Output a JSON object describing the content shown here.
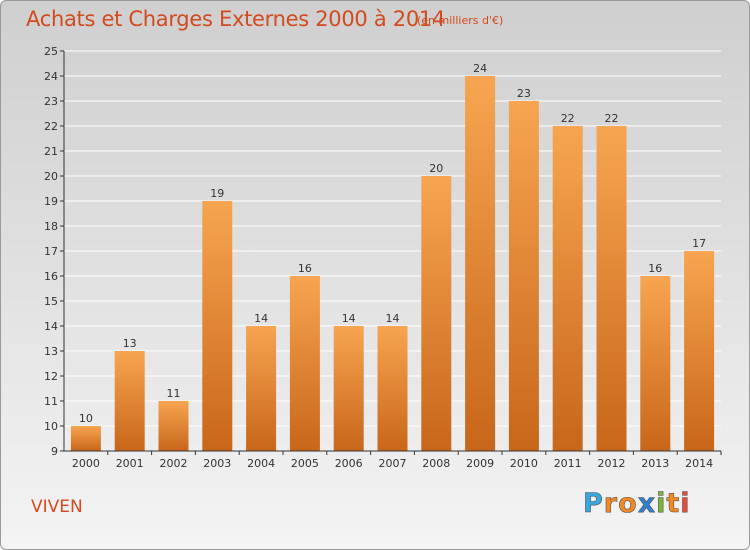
{
  "header": {
    "title": "Achats et Charges Externes 2000 à 2014",
    "subtitle": "(en milliers d'€)"
  },
  "footer": {
    "commune": "VIVEN",
    "logo_text": "Proxiti",
    "logo_letters": [
      {
        "char": "P",
        "color": "#3aa6e0"
      },
      {
        "char": "r",
        "color": "#f08a24"
      },
      {
        "char": "o",
        "color": "#f08a24"
      },
      {
        "char": "x",
        "color": "#2e7fd0"
      },
      {
        "char": "i",
        "color": "#7bb63a"
      },
      {
        "char": "t",
        "color": "#f08a24"
      },
      {
        "char": "i",
        "color": "#e64b3c"
      }
    ]
  },
  "chart_data": {
    "type": "bar",
    "title": "Achats et Charges Externes 2000 à 2014",
    "subtitle": "(en milliers d'€)",
    "categories": [
      "2000",
      "2001",
      "2002",
      "2003",
      "2004",
      "2005",
      "2006",
      "2007",
      "2008",
      "2009",
      "2010",
      "2011",
      "2012",
      "2013",
      "2014"
    ],
    "values": [
      10,
      13,
      11,
      19,
      14,
      16,
      14,
      14,
      20,
      24,
      23,
      22,
      22,
      16,
      17
    ],
    "data_labels": [
      "10",
      "13",
      "11",
      "19",
      "14",
      "16",
      "14",
      "14",
      "20",
      "24",
      "23",
      "22",
      "22",
      "16",
      "17"
    ],
    "ylim": [
      9,
      25
    ],
    "yticks": [
      9,
      10,
      11,
      12,
      13,
      14,
      15,
      16,
      17,
      18,
      19,
      20,
      21,
      22,
      23,
      24,
      25
    ],
    "grid": true,
    "colors": {
      "bar_top": "#f7a550",
      "bar_bottom": "#c8661a",
      "grid": "#ffffff",
      "axis": "#333333"
    }
  }
}
